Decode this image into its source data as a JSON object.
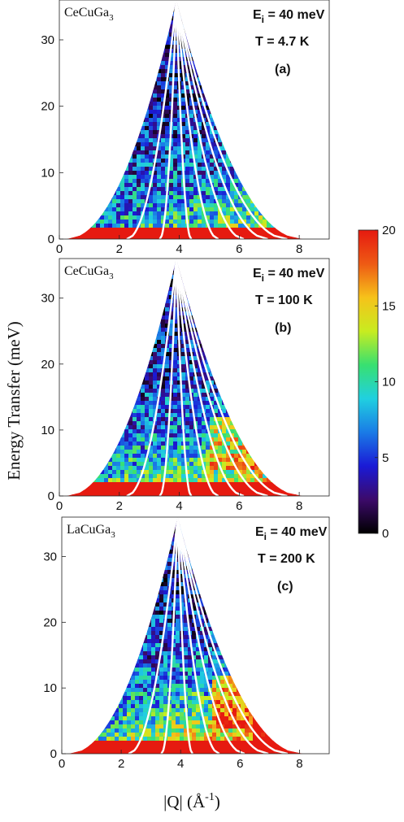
{
  "chart_data": {
    "type": "heatmap",
    "ylabel": "Energy Transfer (meV)",
    "xlabel": "|Q| (Å",
    "xlabel_exp": "-1",
    "xlabel_end": ")",
    "xlim": [
      0,
      9
    ],
    "ylim": [
      0,
      36
    ],
    "x_ticks": [
      "0",
      "2",
      "4",
      "6",
      "8"
    ],
    "x_tick_values": [
      0,
      2,
      4,
      6,
      8
    ],
    "y_ticks": [
      "0",
      "10",
      "20",
      "30"
    ],
    "y_tick_values": [
      0,
      10,
      20,
      30
    ],
    "colorbar": {
      "range": [
        0,
        20
      ],
      "ticks": [
        "0",
        "5",
        "10",
        "15",
        "20"
      ],
      "tick_values": [
        0,
        5,
        10,
        15,
        20
      ],
      "colormap": "jet",
      "colors": [
        "#000000",
        "#3c0a6a",
        "#1a1ad6",
        "#1a7be6",
        "#20d0e0",
        "#38e070",
        "#c8ec20",
        "#f6c21a",
        "#ee5a14",
        "#e61a10"
      ]
    },
    "kinematic_limit": {
      "peak_x": 3.9,
      "peak_y": 36,
      "left_x_at_0": 0.25,
      "right_x_at_0": 8.1,
      "elastic_band_top": 2.2
    },
    "white_cut_lines_x_at_0": [
      2.25,
      3.35,
      4.4,
      5.3,
      6.15,
      6.95,
      7.6
    ],
    "panels": [
      {
        "sample_base": "CeCuGa",
        "sample_sub": "3",
        "ei_label": "E",
        "ei_sub": "i",
        "ei_value": " = 40 meV",
        "temperature": "T = 4.7 K",
        "letter": "(a)",
        "intensity_scale": 0.7
      },
      {
        "sample_base": "CeCuGa",
        "sample_sub": "3",
        "ei_label": "E",
        "ei_sub": "i",
        "ei_value": " = 40 meV",
        "temperature": "T = 100 K",
        "letter": "(b)",
        "intensity_scale": 1.0
      },
      {
        "sample_base": "LaCuGa",
        "sample_sub": "3",
        "ei_label": "E",
        "ei_sub": "i",
        "ei_value": " = 40 meV",
        "temperature": "T = 200 K",
        "letter": "(c)",
        "intensity_scale": 1.3
      }
    ]
  }
}
